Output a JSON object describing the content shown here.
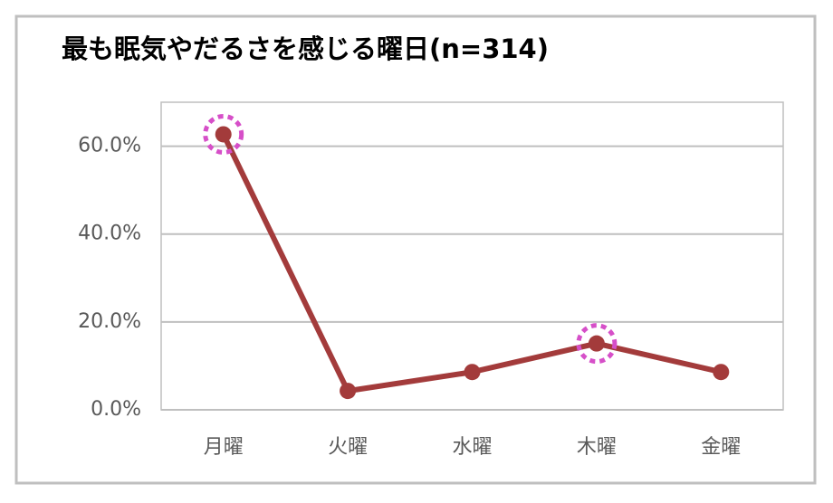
{
  "chart_data": {
    "type": "line",
    "title": "最も眠気やだるさを感じる曜日(n=314)",
    "categories": [
      "月曜",
      "火曜",
      "水曜",
      "木曜",
      "金曜"
    ],
    "values": [
      62.7,
      4.3,
      8.6,
      15.1,
      8.6
    ],
    "color": "#a33b3b",
    "ylim": [
      0,
      70
    ],
    "yticks": [
      {
        "value": 0,
        "label": "0.0%"
      },
      {
        "value": 20,
        "label": "20.0%"
      },
      {
        "value": 40,
        "label": "40.0%"
      },
      {
        "value": 60,
        "label": "60.0%"
      }
    ],
    "grid": true
  }
}
